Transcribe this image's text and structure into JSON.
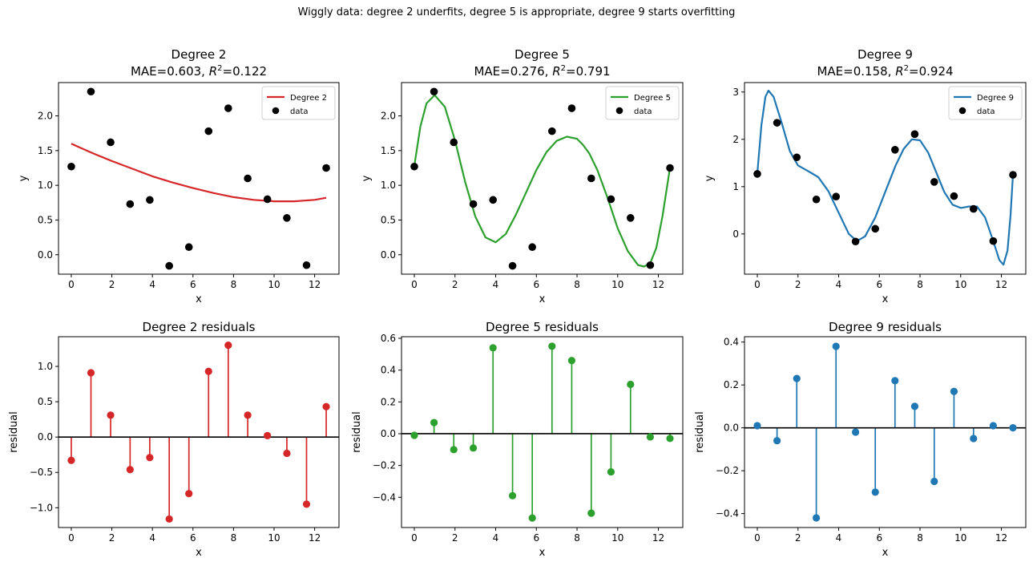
{
  "figure": {
    "suptitle": "Wiggly data: degree 2 underfits, degree 5 is appropriate, degree 9 starts overfitting"
  },
  "chart_data": [
    {
      "type": "line",
      "panel": "fit",
      "degree": 2,
      "title_line1": "Degree 2",
      "mae": "0.603",
      "r2": "0.122",
      "xlabel": "x",
      "ylabel": "y",
      "xlim": [
        -0.63,
        13.2
      ],
      "ylim": [
        -0.28,
        2.48
      ],
      "xticks": [
        0,
        2,
        4,
        6,
        8,
        10,
        12
      ],
      "yticks": [
        0.0,
        0.5,
        1.0,
        1.5,
        2.0
      ],
      "ytick_labels": [
        "0.0",
        "0.5",
        "1.0",
        "1.5",
        "2.0"
      ],
      "legend": [
        "Degree 2",
        "data"
      ],
      "legend_position": "top-right",
      "color": "#d62728",
      "fit_x": [
        0,
        1,
        2,
        3,
        4,
        5,
        6,
        7,
        8,
        9,
        10,
        11,
        12,
        12.57
      ],
      "fit_y": [
        1.6,
        1.47,
        1.35,
        1.24,
        1.13,
        1.04,
        0.96,
        0.89,
        0.83,
        0.79,
        0.77,
        0.77,
        0.79,
        0.82
      ],
      "data_x": [
        0,
        0.97,
        1.94,
        2.9,
        3.87,
        4.83,
        5.8,
        6.77,
        7.74,
        8.7,
        9.67,
        10.63,
        11.6,
        12.57
      ],
      "data_y": [
        1.27,
        2.35,
        1.62,
        0.73,
        0.79,
        -0.16,
        0.11,
        1.78,
        2.11,
        1.1,
        0.8,
        0.53,
        -0.15,
        1.25
      ]
    },
    {
      "type": "line",
      "panel": "fit",
      "degree": 5,
      "title_line1": "Degree 5",
      "mae": "0.276",
      "r2": "0.791",
      "xlabel": "x",
      "ylabel": "y",
      "xlim": [
        -0.63,
        13.2
      ],
      "ylim": [
        -0.28,
        2.48
      ],
      "xticks": [
        0,
        2,
        4,
        6,
        8,
        10,
        12
      ],
      "yticks": [
        0.0,
        0.5,
        1.0,
        1.5,
        2.0
      ],
      "ytick_labels": [
        "0.0",
        "0.5",
        "1.0",
        "1.5",
        "2.0"
      ],
      "legend": [
        "Degree 5",
        "data"
      ],
      "legend_position": "top-right",
      "color": "#2ca02c",
      "fit_x": [
        0,
        0.3,
        0.6,
        1,
        1.5,
        2,
        2.5,
        3,
        3.5,
        4,
        4.5,
        5,
        5.5,
        6,
        6.5,
        7,
        7.5,
        8,
        8.3,
        8.6,
        9,
        9.5,
        10,
        10.5,
        11,
        11.3,
        11.6,
        11.9,
        12.2,
        12.57
      ],
      "fit_y": [
        1.28,
        1.85,
        2.18,
        2.3,
        2.13,
        1.65,
        1.05,
        0.55,
        0.25,
        0.18,
        0.3,
        0.58,
        0.9,
        1.22,
        1.48,
        1.64,
        1.7,
        1.67,
        1.58,
        1.46,
        1.22,
        0.82,
        0.38,
        0.05,
        -0.15,
        -0.17,
        -0.12,
        0.1,
        0.55,
        1.25
      ],
      "data_x": [
        0,
        0.97,
        1.94,
        2.9,
        3.87,
        4.83,
        5.8,
        6.77,
        7.74,
        8.7,
        9.67,
        10.63,
        11.6,
        12.57
      ],
      "data_y": [
        1.27,
        2.35,
        1.62,
        0.73,
        0.79,
        -0.16,
        0.11,
        1.78,
        2.11,
        1.1,
        0.8,
        0.53,
        -0.15,
        1.25
      ]
    },
    {
      "type": "line",
      "panel": "fit",
      "degree": 9,
      "title_line1": "Degree 9",
      "mae": "0.158",
      "r2": "0.924",
      "xlabel": "x",
      "ylabel": "y",
      "xlim": [
        -0.63,
        13.2
      ],
      "ylim": [
        -0.85,
        3.2
      ],
      "xticks": [
        0,
        2,
        4,
        6,
        8,
        10,
        12
      ],
      "yticks": [
        0,
        1,
        2,
        3
      ],
      "ytick_labels": [
        "0",
        "1",
        "2",
        "3"
      ],
      "legend": [
        "Degree 9",
        "data"
      ],
      "legend_position": "top-right",
      "color": "#1f77b4",
      "fit_x": [
        0,
        0.2,
        0.4,
        0.55,
        0.8,
        1.2,
        1.6,
        2,
        2.5,
        3,
        3.5,
        4,
        4.5,
        4.9,
        5.3,
        5.8,
        6.3,
        6.8,
        7.2,
        7.6,
        8,
        8.4,
        8.8,
        9.2,
        9.6,
        10,
        10.4,
        10.8,
        11.2,
        11.6,
        11.9,
        12.1,
        12.3,
        12.45,
        12.57
      ],
      "fit_y": [
        1.28,
        2.3,
        2.9,
        3.03,
        2.9,
        2.35,
        1.75,
        1.45,
        1.33,
        1.2,
        0.9,
        0.45,
        0.0,
        -0.15,
        -0.05,
        0.35,
        0.9,
        1.45,
        1.8,
        2.0,
        1.98,
        1.72,
        1.3,
        0.88,
        0.62,
        0.55,
        0.58,
        0.58,
        0.35,
        -0.15,
        -0.55,
        -0.65,
        -0.35,
        0.4,
        1.25
      ],
      "data_x": [
        0,
        0.97,
        1.94,
        2.9,
        3.87,
        4.83,
        5.8,
        6.77,
        7.74,
        8.7,
        9.67,
        10.63,
        11.6,
        12.57
      ],
      "data_y": [
        1.27,
        2.35,
        1.62,
        0.73,
        0.79,
        -0.16,
        0.11,
        1.78,
        2.11,
        1.1,
        0.8,
        0.53,
        -0.15,
        1.25
      ]
    },
    {
      "type": "scatter",
      "panel": "residuals",
      "degree": 2,
      "title": "Degree 2 residuals",
      "xlabel": "x",
      "ylabel": "residual",
      "xlim": [
        -0.63,
        13.2
      ],
      "ylim": [
        -1.28,
        1.42
      ],
      "xticks": [
        0,
        2,
        4,
        6,
        8,
        10,
        12
      ],
      "yticks": [
        -1.0,
        -0.5,
        0.0,
        0.5,
        1.0
      ],
      "ytick_labels": [
        "−1.0",
        "−0.5",
        "0.0",
        "0.5",
        "1.0"
      ],
      "color": "#d62728",
      "x": [
        0,
        0.97,
        1.94,
        2.9,
        3.87,
        4.83,
        5.8,
        6.77,
        7.74,
        8.7,
        9.67,
        10.63,
        11.6,
        12.57
      ],
      "values": [
        -0.33,
        0.91,
        0.31,
        -0.46,
        -0.29,
        -1.16,
        -0.8,
        0.93,
        1.3,
        0.31,
        0.02,
        -0.23,
        -0.95,
        0.43
      ]
    },
    {
      "type": "scatter",
      "panel": "residuals",
      "degree": 5,
      "title": "Degree 5 residuals",
      "xlabel": "x",
      "ylabel": "residual",
      "xlim": [
        -0.63,
        13.2
      ],
      "ylim": [
        -0.59,
        0.61
      ],
      "xticks": [
        0,
        2,
        4,
        6,
        8,
        10,
        12
      ],
      "yticks": [
        -0.4,
        -0.2,
        0.0,
        0.2,
        0.4,
        0.6
      ],
      "ytick_labels": [
        "−0.4",
        "−0.2",
        "0.0",
        "0.2",
        "0.4",
        "0.6"
      ],
      "color": "#2ca02c",
      "x": [
        0,
        0.97,
        1.94,
        2.9,
        3.87,
        4.83,
        5.8,
        6.77,
        7.74,
        8.7,
        9.67,
        10.63,
        11.6,
        12.57
      ],
      "values": [
        -0.01,
        0.07,
        -0.1,
        -0.09,
        0.54,
        -0.39,
        -0.53,
        0.55,
        0.46,
        -0.5,
        -0.24,
        0.31,
        -0.02,
        -0.03
      ]
    },
    {
      "type": "scatter",
      "panel": "residuals",
      "degree": 9,
      "title": "Degree 9 residuals",
      "xlabel": "x",
      "ylabel": "residual",
      "xlim": [
        -0.63,
        13.2
      ],
      "ylim": [
        -0.465,
        0.425
      ],
      "xticks": [
        0,
        2,
        4,
        6,
        8,
        10,
        12
      ],
      "yticks": [
        -0.4,
        -0.2,
        0.0,
        0.2,
        0.4
      ],
      "ytick_labels": [
        "−0.4",
        "−0.2",
        "0.0",
        "0.2",
        "0.4"
      ],
      "color": "#1f77b4",
      "x": [
        0,
        0.97,
        1.94,
        2.9,
        3.87,
        4.83,
        5.8,
        6.77,
        7.74,
        8.7,
        9.67,
        10.63,
        11.6,
        12.57
      ],
      "values": [
        0.01,
        -0.06,
        0.23,
        -0.42,
        0.38,
        -0.02,
        -0.3,
        0.22,
        0.1,
        -0.25,
        0.17,
        -0.05,
        0.01,
        0.0
      ]
    }
  ]
}
